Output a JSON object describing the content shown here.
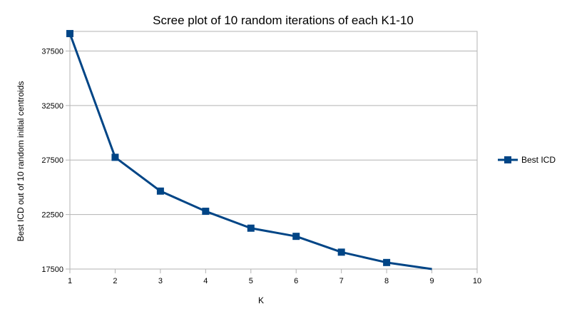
{
  "chart_data": {
    "type": "line",
    "title": "Scree plot of 10 random iterations of each K1-10",
    "xlabel": "K",
    "ylabel": "Best ICD out of 10 random initial centroids",
    "xlim": [
      1,
      10
    ],
    "ylim": [
      17500,
      39300
    ],
    "x_ticks": [
      "1",
      "2",
      "3",
      "4",
      "5",
      "6",
      "7",
      "8",
      "9",
      "10"
    ],
    "y_ticks": [
      {
        "value": 17500,
        "label": "17500"
      },
      {
        "value": 22500,
        "label": "22500"
      },
      {
        "value": 27500,
        "label": "27500"
      },
      {
        "value": 32500,
        "label": "32500"
      },
      {
        "value": 37500,
        "label": "37500"
      }
    ],
    "grid": "horizontal",
    "legend_position": "right",
    "series": [
      {
        "name": "Best ICD",
        "color": "#004586",
        "marker": "square",
        "x": [
          1,
          2,
          3,
          4,
          5,
          6,
          7,
          8,
          9
        ],
        "values": [
          39100,
          27750,
          24650,
          22800,
          21250,
          20500,
          19050,
          18100,
          17500
        ],
        "marker_points": 8
      }
    ]
  }
}
